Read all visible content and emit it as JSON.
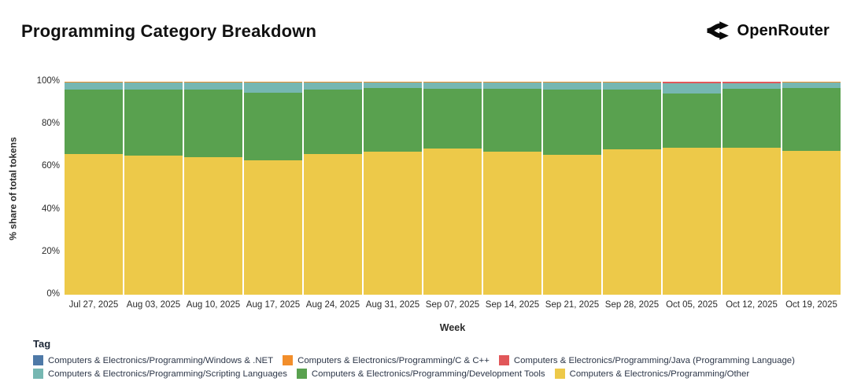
{
  "header": {
    "title": "Programming Category Breakdown",
    "brand": "OpenRouter"
  },
  "chart_data": {
    "type": "bar",
    "subtype": "100%-stacked-column",
    "title": "Programming Category Breakdown",
    "xlabel": "Week",
    "ylabel": "% share of total tokens",
    "ylim": [
      0,
      100
    ],
    "yticks": [
      0,
      20,
      40,
      60,
      80,
      100
    ],
    "categories": [
      "Jul 27, 2025",
      "Aug 03, 2025",
      "Aug 10, 2025",
      "Aug 17, 2025",
      "Aug 24, 2025",
      "Aug 31, 2025",
      "Sep 07, 2025",
      "Sep 14, 2025",
      "Sep 21, 2025",
      "Sep 28, 2025",
      "Oct 05, 2025",
      "Oct 12, 2025",
      "Oct 19, 2025"
    ],
    "series": [
      {
        "name": "Computers & Electronics/Programming/Other",
        "color": "#EDC949",
        "values": [
          66.0,
          65.2,
          64.6,
          63.2,
          66.0,
          67.0,
          68.8,
          67.0,
          65.6,
          68.2,
          69.0,
          69.1,
          67.4
        ]
      },
      {
        "name": "Computers & Electronics/Programming/Development Tools",
        "color": "#59A14F",
        "values": [
          30.2,
          31.3,
          31.8,
          31.6,
          30.3,
          29.9,
          27.8,
          29.6,
          30.7,
          28.1,
          25.4,
          27.6,
          29.6
        ]
      },
      {
        "name": "Computers & Electronics/Programming/Scripting Languages",
        "color": "#76B7B2",
        "values": [
          3.6,
          3.3,
          3.4,
          5.0,
          3.5,
          2.9,
          3.2,
          3.2,
          3.5,
          3.5,
          4.7,
          2.55,
          2.8
        ]
      },
      {
        "name": "Computers & Electronics/Programming/Java (Programming Language)",
        "color": "#E15759",
        "values": [
          0.02,
          0.02,
          0.02,
          0.02,
          0.02,
          0.02,
          0.02,
          0.02,
          0.02,
          0.02,
          0.85,
          0.7,
          0.02
        ]
      },
      {
        "name": "Computers & Electronics/Programming/C & C++",
        "color": "#F28E2B",
        "values": [
          0.13,
          0.13,
          0.13,
          0.13,
          0.13,
          0.13,
          0.13,
          0.13,
          0.13,
          0.13,
          0.03,
          0.03,
          0.13
        ]
      },
      {
        "name": "Computers & Electronics/Programming/Windows & .NET",
        "color": "#4E79A7",
        "values": [
          0.05,
          0.05,
          0.05,
          0.05,
          0.05,
          0.05,
          0.05,
          0.05,
          0.05,
          0.05,
          0.02,
          0.02,
          0.05
        ]
      }
    ],
    "legend_position": "bottom-left",
    "grid": false
  },
  "legend": {
    "title": "Tag",
    "rows": [
      [
        {
          "label": "Computers & Electronics/Programming/Windows & .NET",
          "color": "#4E79A7"
        },
        {
          "label": "Computers & Electronics/Programming/C & C++",
          "color": "#F28E2B"
        },
        {
          "label": "Computers & Electronics/Programming/Java (Programming Language)",
          "color": "#E15759"
        }
      ],
      [
        {
          "label": "Computers & Electronics/Programming/Scripting Languages",
          "color": "#76B7B2"
        },
        {
          "label": "Computers & Electronics/Programming/Development Tools",
          "color": "#59A14F"
        },
        {
          "label": "Computers & Electronics/Programming/Other",
          "color": "#EDC949"
        }
      ]
    ]
  }
}
